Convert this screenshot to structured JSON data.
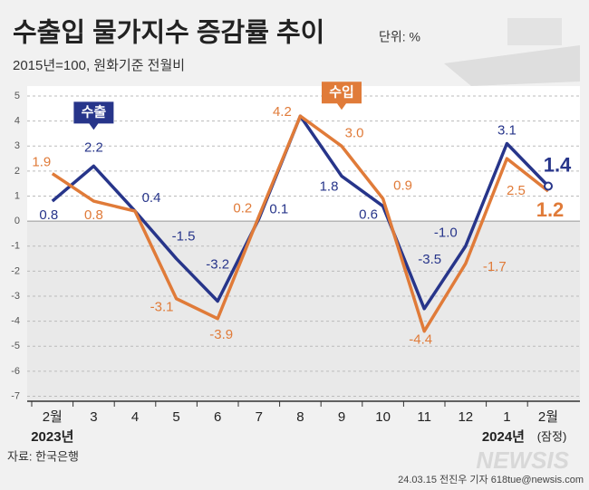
{
  "chart_data": {
    "type": "line",
    "title": "수출입 물가지수 증감률 추이",
    "unit": "단위: %",
    "subtitle": "2015년=100, 원화기준 전월비",
    "categories": [
      "2월",
      "3",
      "4",
      "5",
      "6",
      "7",
      "8",
      "9",
      "10",
      "11",
      "12",
      "1",
      "2월"
    ],
    "year_labels": [
      "2023년",
      "2024년",
      "(잠정)"
    ],
    "series": [
      {
        "name": "수출",
        "color": "#27358a",
        "values": [
          0.8,
          2.2,
          0.4,
          -1.5,
          -3.2,
          0.1,
          4.2,
          1.8,
          0.6,
          -3.5,
          -1.0,
          3.1,
          1.4
        ],
        "value_labels": [
          "0.8",
          "2.2",
          "0.4",
          "-1.5",
          "-3.2",
          "0.1",
          null,
          "1.8",
          "0.6",
          "-3.5",
          "-1.0",
          "3.1",
          "1.4"
        ]
      },
      {
        "name": "수입",
        "color": "#e07b39",
        "values": [
          1.9,
          0.8,
          0.4,
          -3.1,
          -3.9,
          0.2,
          4.2,
          3.0,
          0.9,
          -4.4,
          -1.7,
          2.5,
          1.2
        ],
        "value_labels": [
          "1.9",
          "0.8",
          null,
          "-3.1",
          "-3.9",
          "0.2",
          "4.2",
          "3.0",
          "0.9",
          "-4.4",
          "-1.7",
          "2.5",
          "1.2"
        ]
      }
    ],
    "ylim": [
      -7.2,
      5.4
    ],
    "yticks": [
      -7,
      -6,
      -5,
      -4,
      -3,
      -2,
      -1,
      0,
      1,
      2,
      3,
      4,
      5
    ],
    "source": "자료: 한국은행",
    "credit": "24.03.15 전진우 기자 618tue@newsis.com",
    "watermark": "NEWSIS"
  }
}
